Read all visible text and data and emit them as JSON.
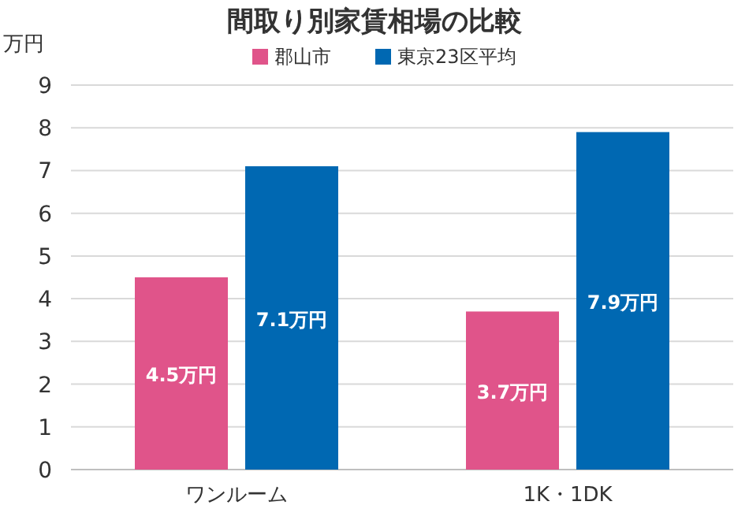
{
  "chart_data": {
    "type": "bar",
    "title": "間取り別家賃相場の比較",
    "ylabel": "万円",
    "categories": [
      "ワンルーム",
      "1K・1DK"
    ],
    "series": [
      {
        "name": "郡山市",
        "color": "#e0548a",
        "values": [
          4.5,
          3.7
        ],
        "value_labels": [
          "4.5万円",
          "3.7万円"
        ]
      },
      {
        "name": "東京23区平均",
        "color": "#0068b2",
        "values": [
          7.1,
          7.9
        ],
        "value_labels": [
          "7.1万円",
          "7.9万円"
        ]
      }
    ],
    "ylim": [
      0,
      9
    ],
    "yticks": [
      0,
      1,
      2,
      3,
      4,
      5,
      6,
      7,
      8,
      9
    ],
    "grid": "y",
    "legend": "top"
  }
}
